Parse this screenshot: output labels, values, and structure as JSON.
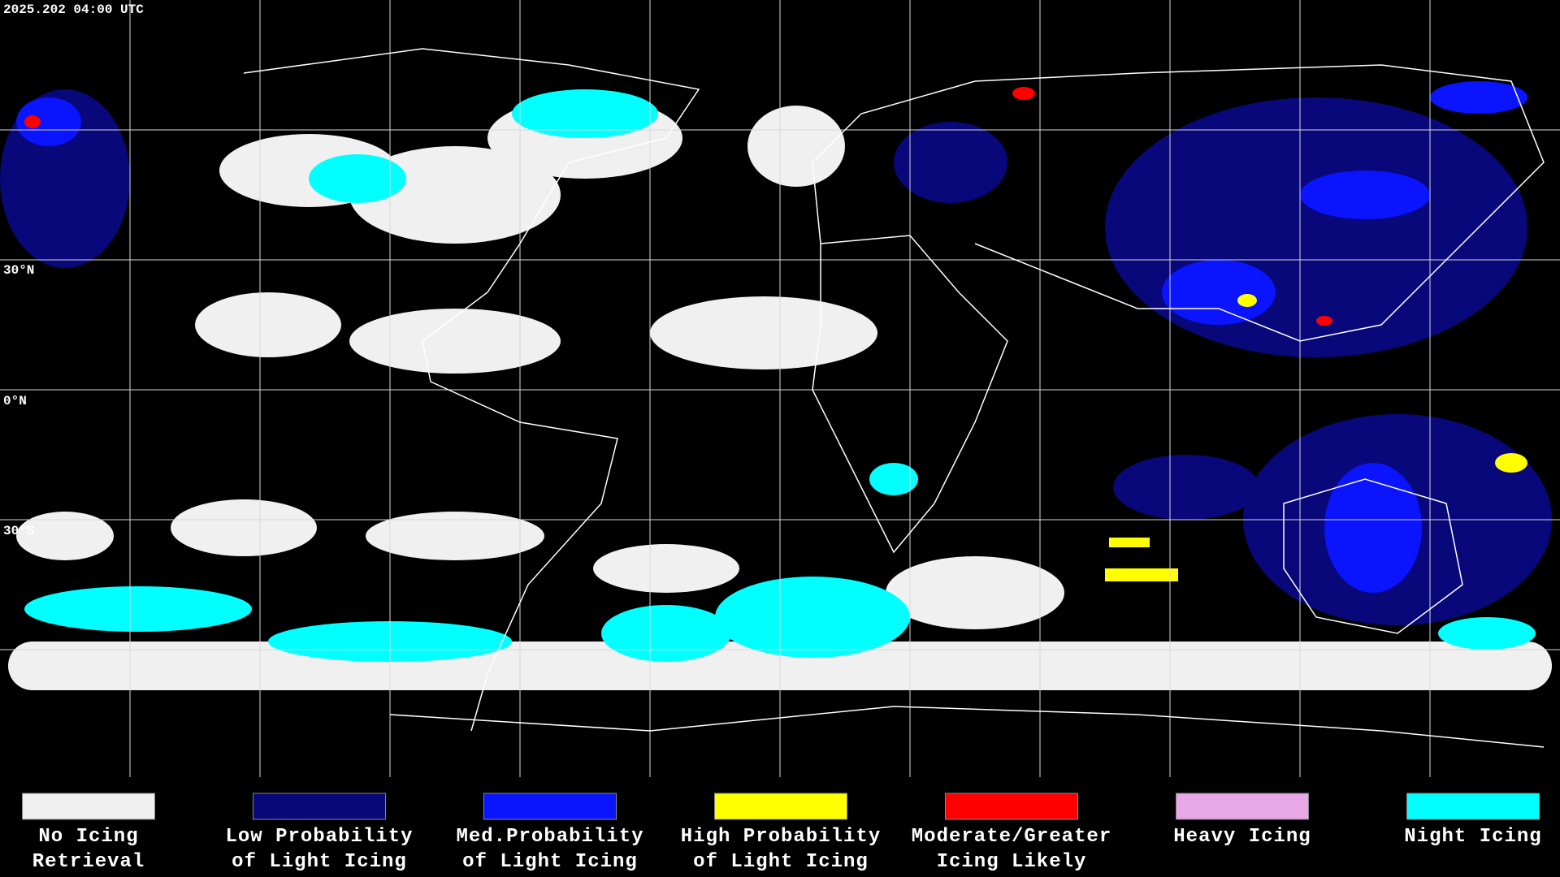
{
  "timestamp": "2025.202 04:00 UTC",
  "latitude_labels": [
    "30°N",
    "0°N",
    "30°S"
  ],
  "legend": [
    {
      "lines": [
        "No Icing",
        "Retrieval"
      ],
      "color": "#f0f0f0"
    },
    {
      "lines": [
        "Low Probability",
        "of Light Icing"
      ],
      "color": "#08087a"
    },
    {
      "lines": [
        "Med.Probability",
        "of Light Icing"
      ],
      "color": "#0a14ff"
    },
    {
      "lines": [
        "High Probability",
        "of Light Icing"
      ],
      "color": "#ffff00"
    },
    {
      "lines": [
        "Moderate/Greater",
        "Icing Likely"
      ],
      "color": "#ff0000"
    },
    {
      "lines": [
        "Heavy Icing"
      ],
      "color": "#e8a8e8"
    },
    {
      "lines": [
        "Night Icing"
      ],
      "color": "#00ffff"
    }
  ]
}
